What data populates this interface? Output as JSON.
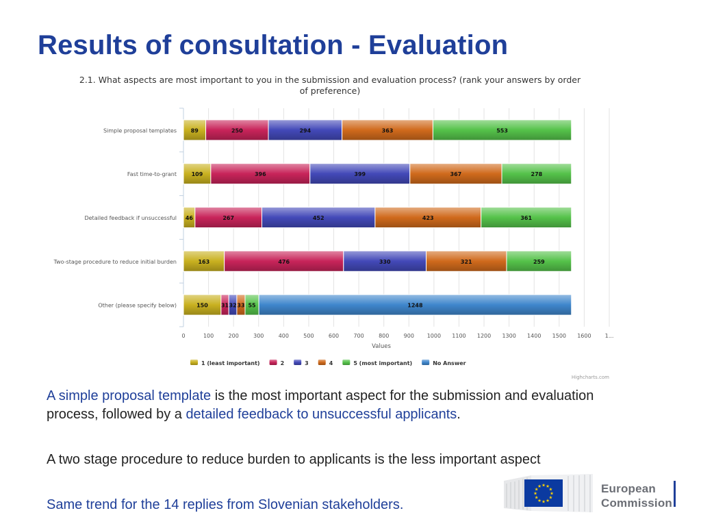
{
  "slide": {
    "title": "Results of consultation - Evaluation"
  },
  "chart_data": {
    "type": "bar",
    "orientation": "horizontal",
    "stacked": true,
    "title": "2.1. What aspects are most important to you in the submission and evaluation process? (rank your answers by order of preference)",
    "title_lines": [
      "2.1. What aspects are most important to you in the submission and evaluation process? (rank your answers by order",
      "of preference)"
    ],
    "categories": [
      "Simple proposal templates",
      "Fast time-to-grant",
      "Detailed feedback if unsuccessful",
      "Two-stage procedure to reduce initial burden",
      "Other (please specify below)"
    ],
    "series": [
      {
        "name": "1 (least important)",
        "color": "#c9b120",
        "values": [
          89,
          109,
          46,
          163,
          150
        ]
      },
      {
        "name": "2",
        "color": "#c8245a",
        "values": [
          250,
          396,
          267,
          476,
          31
        ]
      },
      {
        "name": "3",
        "color": "#4349b8",
        "values": [
          294,
          399,
          452,
          330,
          32
        ]
      },
      {
        "name": "4",
        "color": "#d06a1c",
        "values": [
          363,
          367,
          423,
          321,
          33
        ]
      },
      {
        "name": "5 (most important)",
        "color": "#55c24a",
        "values": [
          553,
          278,
          361,
          259,
          55
        ]
      },
      {
        "name": "No Answer",
        "color": "#3f86cc",
        "values": [
          0,
          0,
          0,
          0,
          1248
        ]
      }
    ],
    "xlabel": "Values",
    "xlim": [
      0,
      1700
    ],
    "xticks": [
      "0",
      "100",
      "200",
      "300",
      "400",
      "500",
      "600",
      "700",
      "800",
      "900",
      "1000",
      "1100",
      "1200",
      "1300",
      "1400",
      "1500",
      "1600",
      "1..."
    ],
    "grid": true,
    "legend_position": "bottom",
    "credits": "Highcharts.com"
  },
  "text": {
    "p1_hl1": "A simple proposal template",
    "p1_mid": " is the most important aspect for the submission and evaluation process, followed by a ",
    "p1_hl2": "detailed feedback to unsuccessful applicants",
    "p1_end": ".",
    "p2": "A two stage procedure to reduce burden to applicants is the less important aspect",
    "p3": "Same trend for the 14 replies from Slovenian stakeholders."
  },
  "logo": {
    "line1": "European",
    "line2": "Commission",
    "flag_color": "#0b3aa0",
    "star_color": "#ffd500"
  }
}
